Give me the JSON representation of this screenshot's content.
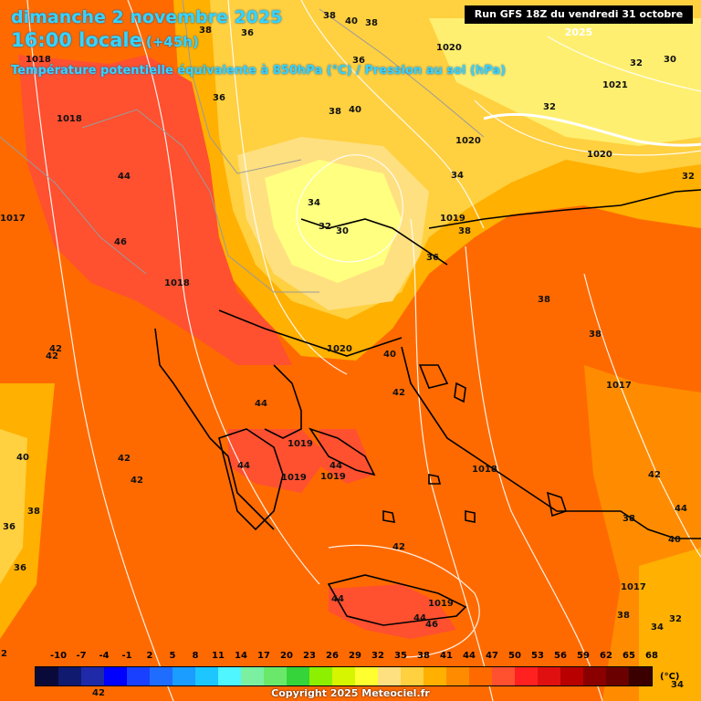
{
  "header": {
    "date_line": "dimanche 2 novembre 2025",
    "time_line": "16:00 locale",
    "offset": "(+45h)",
    "subtitle": "Température potentielle équivalente à 850hPa (°C) / Pression au sol (hPa)"
  },
  "run_info": "Run GFS 18Z du vendredi 31 octobre 2025",
  "copyright": "Copyright 2025 Meteociel.fr",
  "legend": {
    "unit": "(°C)",
    "ticks": [
      "-10",
      "-7",
      "-4",
      "-1",
      "2",
      "5",
      "8",
      "11",
      "14",
      "17",
      "20",
      "23",
      "26",
      "29",
      "32",
      "35",
      "38",
      "41",
      "44",
      "47",
      "50",
      "53",
      "56",
      "59",
      "62",
      "65",
      "68"
    ],
    "colors": [
      "#0a0a3a",
      "#101a6e",
      "#1e2aa8",
      "#0000ff",
      "#1a40ff",
      "#1f6dff",
      "#1b9cff",
      "#1dc6ff",
      "#4ff5ff",
      "#7af0a0",
      "#6ae86a",
      "#35d43a",
      "#8cf000",
      "#d6f500",
      "#ffff30",
      "#ffe080",
      "#ffd040",
      "#ffb000",
      "#ff8c00",
      "#ff6a00",
      "#ff5030",
      "#ff2020",
      "#e01010",
      "#b80000",
      "#8a0000",
      "#6a0000",
      "#3a0000"
    ]
  },
  "map_labels": [
    {
      "text": "38"
    },
    {
      "text": "40"
    },
    {
      "text": "38"
    },
    {
      "text": "38"
    },
    {
      "text": "36"
    },
    {
      "text": "1020"
    },
    {
      "text": "32"
    },
    {
      "text": "30"
    },
    {
      "text": "1018"
    },
    {
      "text": "1018"
    },
    {
      "text": "36"
    },
    {
      "text": "38"
    },
    {
      "text": "40"
    },
    {
      "text": "1021"
    },
    {
      "text": "32"
    },
    {
      "text": "36"
    },
    {
      "text": "1020"
    },
    {
      "text": "1020"
    },
    {
      "text": "44"
    },
    {
      "text": "34"
    },
    {
      "text": "32"
    },
    {
      "text": "1017"
    },
    {
      "text": "34"
    },
    {
      "text": "1019"
    },
    {
      "text": "32"
    },
    {
      "text": "30"
    },
    {
      "text": "38"
    },
    {
      "text": "46"
    },
    {
      "text": "36"
    },
    {
      "text": "1018"
    },
    {
      "text": "38"
    },
    {
      "text": "38"
    },
    {
      "text": "42"
    },
    {
      "text": "42"
    },
    {
      "text": "1020"
    },
    {
      "text": "40"
    },
    {
      "text": "1017"
    },
    {
      "text": "42"
    },
    {
      "text": "44"
    },
    {
      "text": "1019"
    },
    {
      "text": "40"
    },
    {
      "text": "42"
    },
    {
      "text": "44"
    },
    {
      "text": "44"
    },
    {
      "text": "1019"
    },
    {
      "text": "1019"
    },
    {
      "text": "1018"
    },
    {
      "text": "42"
    },
    {
      "text": "42"
    },
    {
      "text": "38"
    },
    {
      "text": "36"
    },
    {
      "text": "44"
    },
    {
      "text": "38"
    },
    {
      "text": "40"
    },
    {
      "text": "36"
    },
    {
      "text": "42"
    },
    {
      "text": "44"
    },
    {
      "text": "1019"
    },
    {
      "text": "44"
    },
    {
      "text": "46"
    },
    {
      "text": "1017"
    },
    {
      "text": "38"
    },
    {
      "text": "32"
    },
    {
      "text": "34"
    },
    {
      "text": "34"
    },
    {
      "text": "42"
    },
    {
      "text": "2"
    }
  ]
}
